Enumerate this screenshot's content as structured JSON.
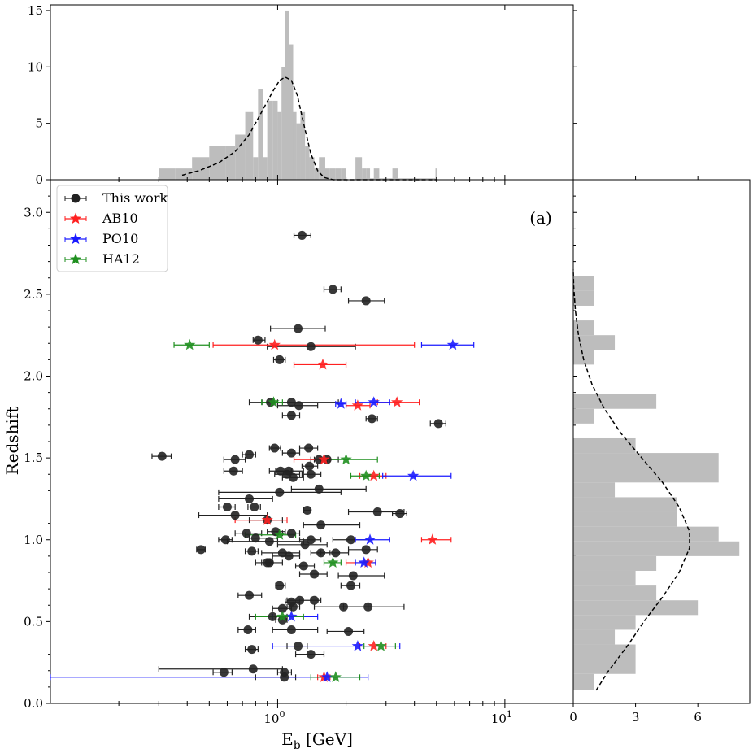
{
  "chart_data": {
    "type": "scatter",
    "panel_label": "(a)",
    "xlabel": "E_b [GeV]",
    "xlabel_main": "E",
    "xlabel_sub": "b",
    "xlabel_unit": " [GeV]",
    "ylabel": "Redshift",
    "xscale": "log",
    "xlim": [
      0.1,
      20
    ],
    "ylim": [
      0.0,
      3.2
    ],
    "x_ticks": [
      {
        "value": 1,
        "base": "10",
        "exp": "0"
      },
      {
        "value": 10,
        "base": "10",
        "exp": "1"
      }
    ],
    "y_ticks": [
      "0.0",
      "0.5",
      "1.0",
      "1.5",
      "2.0",
      "2.5",
      "3.0"
    ],
    "legend": [
      {
        "key": "this_work",
        "label": "This work",
        "color": "#222222",
        "marker": "circle"
      },
      {
        "key": "ab10",
        "label": "AB10",
        "color": "#ff2020",
        "marker": "star"
      },
      {
        "key": "po10",
        "label": "PO10",
        "color": "#1a1aff",
        "marker": "star"
      },
      {
        "key": "ha12",
        "label": "HA12",
        "color": "#1f8f1f",
        "marker": "star"
      }
    ],
    "series": {
      "this_work": [
        [
          1.28,
          2.86,
          1.18,
          1.4
        ],
        [
          1.75,
          2.53,
          1.6,
          1.9
        ],
        [
          2.45,
          2.46,
          2.05,
          2.95
        ],
        [
          1.23,
          2.29,
          0.93,
          1.62
        ],
        [
          0.82,
          2.22,
          0.78,
          0.88
        ],
        [
          1.4,
          2.18,
          0.9,
          2.2
        ],
        [
          1.02,
          2.1,
          0.96,
          1.08
        ],
        [
          0.93,
          1.84,
          0.86,
          1.0
        ],
        [
          1.15,
          1.84,
          0.75,
          1.85
        ],
        [
          1.24,
          1.82,
          1.0,
          1.5
        ],
        [
          2.6,
          1.74,
          2.45,
          2.75
        ],
        [
          1.15,
          1.76,
          1.05,
          1.25
        ],
        [
          5.1,
          1.71,
          4.7,
          5.5
        ],
        [
          0.31,
          1.51,
          0.28,
          0.34
        ],
        [
          0.97,
          1.56,
          0.92,
          1.03
        ],
        [
          1.37,
          1.56,
          1.25,
          1.5
        ],
        [
          1.15,
          1.53,
          1.05,
          1.25
        ],
        [
          0.75,
          1.52,
          0.7,
          0.8
        ],
        [
          0.65,
          1.49,
          0.58,
          0.72
        ],
        [
          1.52,
          1.49,
          1.4,
          1.65
        ],
        [
          1.65,
          1.49,
          1.45,
          1.85
        ],
        [
          1.38,
          1.45,
          1.28,
          1.5
        ],
        [
          0.64,
          1.42,
          0.58,
          0.7
        ],
        [
          1.03,
          1.42,
          0.92,
          1.15
        ],
        [
          1.12,
          1.42,
          0.98,
          1.3
        ],
        [
          1.1,
          1.4,
          0.97,
          1.25
        ],
        [
          1.4,
          1.4,
          1.28,
          1.55
        ],
        [
          1.17,
          1.38,
          1.05,
          1.3
        ],
        [
          1.52,
          1.31,
          1.15,
          2.45
        ],
        [
          1.02,
          1.29,
          0.55,
          1.9
        ],
        [
          0.75,
          1.25,
          0.55,
          0.95
        ],
        [
          0.6,
          1.2,
          0.55,
          0.65
        ],
        [
          0.79,
          1.2,
          0.74,
          0.84
        ],
        [
          1.35,
          1.18,
          1.3,
          1.4
        ],
        [
          2.75,
          1.17,
          2.05,
          3.6
        ],
        [
          3.45,
          1.16,
          3.2,
          3.7
        ],
        [
          0.65,
          1.15,
          0.45,
          0.9
        ],
        [
          0.9,
          1.12,
          0.75,
          1.05
        ],
        [
          1.55,
          1.09,
          1.3,
          2.3
        ],
        [
          0.73,
          1.04,
          0.65,
          0.85
        ],
        [
          0.98,
          1.05,
          0.9,
          1.08
        ],
        [
          1.15,
          1.04,
          1.05,
          1.25
        ],
        [
          0.59,
          1.0,
          0.55,
          0.63
        ],
        [
          0.8,
          1.01,
          0.75,
          1.0
        ],
        [
          0.92,
          0.99,
          0.6,
          1.3
        ],
        [
          1.4,
          1.0,
          1.25,
          1.55
        ],
        [
          2.1,
          1.0,
          1.75,
          2.5
        ],
        [
          1.32,
          0.97,
          1.0,
          1.65
        ],
        [
          0.46,
          0.94,
          0.44,
          0.48
        ],
        [
          0.77,
          0.93,
          0.72,
          0.82
        ],
        [
          1.05,
          0.92,
          0.85,
          1.25
        ],
        [
          1.12,
          0.9,
          0.95,
          1.25
        ],
        [
          1.55,
          0.92,
          1.4,
          1.7
        ],
        [
          2.45,
          0.94,
          2.05,
          2.75
        ],
        [
          1.8,
          0.92,
          1.55,
          2.05
        ],
        [
          0.9,
          0.86,
          0.85,
          0.95
        ],
        [
          0.92,
          0.86,
          0.8,
          1.05
        ],
        [
          1.3,
          0.84,
          1.2,
          1.45
        ],
        [
          1.45,
          0.79,
          1.25,
          1.65
        ],
        [
          2.15,
          0.78,
          1.85,
          2.95
        ],
        [
          1.02,
          0.72,
          0.98,
          1.08
        ],
        [
          2.1,
          0.72,
          1.9,
          2.3
        ],
        [
          0.75,
          0.66,
          0.67,
          0.85
        ],
        [
          1.15,
          0.62,
          1.08,
          1.25
        ],
        [
          1.25,
          0.63,
          1.1,
          1.4
        ],
        [
          1.45,
          0.63,
          1.4,
          1.55
        ],
        [
          1.95,
          0.59,
          1.45,
          2.5
        ],
        [
          2.5,
          0.59,
          1.95,
          3.6
        ],
        [
          1.05,
          0.58,
          0.95,
          1.15
        ],
        [
          1.17,
          0.59,
          1.1,
          1.25
        ],
        [
          0.95,
          0.53,
          0.75,
          1.1
        ],
        [
          1.05,
          0.51,
          0.98,
          1.1
        ],
        [
          0.74,
          0.45,
          0.67,
          0.8
        ],
        [
          1.15,
          0.45,
          0.95,
          1.5
        ],
        [
          2.05,
          0.44,
          1.65,
          2.4
        ],
        [
          1.23,
          0.35,
          1.1,
          1.35
        ],
        [
          0.77,
          0.33,
          0.72,
          0.82
        ],
        [
          1.4,
          0.3,
          1.2,
          1.6
        ],
        [
          0.58,
          0.19,
          0.52,
          0.63
        ],
        [
          0.78,
          0.21,
          0.3,
          1.05
        ],
        [
          1.07,
          0.19,
          1.0,
          1.15
        ],
        [
          1.07,
          0.16,
          0.8,
          1.2
        ]
      ],
      "ab10": [
        [
          0.97,
          2.19,
          0.52,
          4.0
        ],
        [
          1.58,
          2.07,
          1.18,
          2.0
        ],
        [
          3.35,
          1.84,
          2.75,
          4.2
        ],
        [
          2.25,
          1.82,
          2.0,
          2.55
        ],
        [
          1.6,
          1.49,
          1.18,
          1.7
        ],
        [
          2.65,
          1.39,
          2.3,
          3.0
        ],
        [
          0.9,
          1.12,
          0.65,
          1.1
        ],
        [
          4.8,
          1.0,
          4.3,
          5.8
        ],
        [
          2.5,
          0.86,
          2.0,
          2.7
        ],
        [
          2.65,
          0.35,
          2.3,
          3.0
        ],
        [
          1.6,
          0.16,
          1.5,
          1.7
        ]
      ],
      "po10": [
        [
          5.9,
          2.19,
          4.3,
          7.3
        ],
        [
          2.65,
          1.84,
          2.2,
          3.1
        ],
        [
          1.9,
          1.83,
          1.8,
          2.0
        ],
        [
          3.95,
          1.39,
          2.9,
          5.8
        ],
        [
          2.55,
          1.0,
          2.2,
          3.1
        ],
        [
          2.4,
          0.86,
          2.2,
          2.7
        ],
        [
          1.15,
          0.53,
          0.95,
          1.5
        ],
        [
          2.25,
          0.35,
          0.95,
          3.45
        ],
        [
          1.65,
          0.16,
          0.1,
          2.5
        ]
      ],
      "ha12": [
        [
          0.41,
          2.19,
          0.35,
          0.5
        ],
        [
          0.96,
          1.84,
          0.85,
          1.05
        ],
        [
          2.0,
          1.49,
          1.55,
          2.75
        ],
        [
          2.45,
          1.39,
          2.1,
          2.8
        ],
        [
          1.02,
          1.03,
          0.72,
          1.2
        ],
        [
          1.75,
          0.86,
          1.6,
          1.9
        ],
        [
          1.05,
          0.53,
          0.8,
          1.3
        ],
        [
          2.85,
          0.35,
          2.4,
          3.3
        ],
        [
          1.8,
          0.16,
          1.4,
          2.3
        ]
      ]
    },
    "top_hist": {
      "y_ticks": [
        "0",
        "5",
        "10",
        "15"
      ],
      "ylim": [
        0,
        15.5
      ],
      "bin_edges": [
        0.3,
        0.355,
        0.42,
        0.5,
        0.59,
        0.65,
        0.72,
        0.78,
        0.82,
        0.86,
        0.9,
        0.95,
        1.0,
        1.04,
        1.08,
        1.12,
        1.17,
        1.21,
        1.26,
        1.32,
        1.38,
        1.45,
        1.52,
        1.62,
        1.7,
        1.8,
        1.9,
        2.0,
        2.1,
        2.2,
        2.35,
        2.45,
        2.55,
        2.65,
        2.8,
        3.0,
        3.2,
        3.4,
        3.8,
        4.3,
        4.95,
        5.05
      ],
      "counts": [
        1,
        1,
        2,
        3,
        3,
        4,
        6,
        2,
        8,
        2,
        7,
        7,
        6,
        10,
        15,
        12,
        6,
        5,
        6,
        3,
        2,
        1,
        2,
        1,
        1,
        1,
        1,
        0,
        0,
        2,
        1,
        1,
        0,
        1,
        0,
        0,
        1,
        0,
        0,
        0,
        1
      ],
      "kde": [
        [
          0.38,
          0.4
        ],
        [
          0.45,
          0.8
        ],
        [
          0.55,
          1.5
        ],
        [
          0.65,
          2.5
        ],
        [
          0.75,
          4.0
        ],
        [
          0.85,
          6.0
        ],
        [
          0.95,
          7.8
        ],
        [
          1.02,
          8.8
        ],
        [
          1.08,
          9.1
        ],
        [
          1.15,
          8.8
        ],
        [
          1.22,
          7.5
        ],
        [
          1.3,
          5.0
        ],
        [
          1.4,
          2.3
        ],
        [
          1.5,
          0.8
        ],
        [
          1.6,
          0.2
        ],
        [
          1.75,
          0.0
        ],
        [
          2.2,
          0.0
        ],
        [
          5.0,
          0.0
        ]
      ]
    },
    "right_hist": {
      "x_ticks": [
        "0",
        "3",
        "6"
      ],
      "xlim": [
        0,
        8.5
      ],
      "bin_edges": [
        0.08,
        0.18,
        0.27,
        0.36,
        0.45,
        0.54,
        0.63,
        0.72,
        0.81,
        0.9,
        0.99,
        1.08,
        1.17,
        1.26,
        1.35,
        1.44,
        1.53,
        1.62,
        1.71,
        1.8,
        1.89,
        1.98,
        2.07,
        2.16,
        2.25,
        2.34,
        2.43,
        2.52,
        2.61
      ],
      "counts": [
        1,
        3,
        3,
        2,
        3,
        6,
        4,
        3,
        4,
        8,
        7,
        5,
        5,
        2,
        7,
        7,
        3,
        0,
        1,
        4,
        0,
        0,
        1,
        2,
        1,
        0,
        1,
        1
      ],
      "kde": [
        [
          0.08,
          1.1
        ],
        [
          0.2,
          1.7
        ],
        [
          0.35,
          2.6
        ],
        [
          0.5,
          3.4
        ],
        [
          0.65,
          4.3
        ],
        [
          0.8,
          5.1
        ],
        [
          0.95,
          5.6
        ],
        [
          1.05,
          5.6
        ],
        [
          1.2,
          5.1
        ],
        [
          1.35,
          4.3
        ],
        [
          1.5,
          3.3
        ],
        [
          1.65,
          2.3
        ],
        [
          1.8,
          1.5
        ],
        [
          1.95,
          0.9
        ],
        [
          2.1,
          0.5
        ],
        [
          2.25,
          0.25
        ],
        [
          2.4,
          0.1
        ],
        [
          2.55,
          0.02
        ],
        [
          2.65,
          0.0
        ]
      ]
    }
  }
}
